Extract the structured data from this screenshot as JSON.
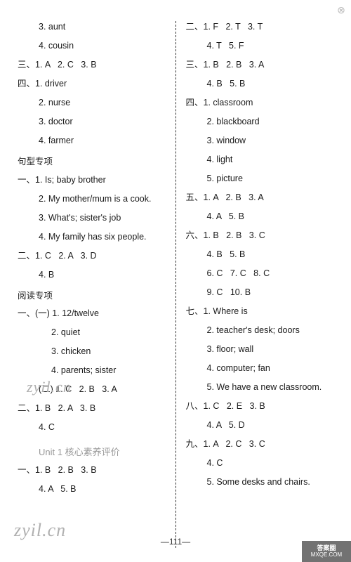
{
  "left": [
    {
      "cls": "line indent1",
      "t": "3. aunt"
    },
    {
      "cls": "line indent1",
      "t": "4. cousin"
    },
    {
      "cls": "line",
      "t": "三、1. A   2. C   3. B"
    },
    {
      "cls": "line",
      "t": "四、1. driver"
    },
    {
      "cls": "line indent1",
      "t": "2. nurse"
    },
    {
      "cls": "line indent1",
      "t": "3. doctor"
    },
    {
      "cls": "line indent1",
      "t": "4. farmer"
    },
    {
      "cls": "section-header",
      "t": "句型专项"
    },
    {
      "cls": "line",
      "t": "一、1. Is; baby brother"
    },
    {
      "cls": "line indent1",
      "t": "2. My mother/mum is a cook."
    },
    {
      "cls": "line indent1",
      "t": "3. What's; sister's job"
    },
    {
      "cls": "line indent1",
      "t": "4. My family has six people."
    },
    {
      "cls": "line",
      "t": "二、1. C   2. A   3. D"
    },
    {
      "cls": "line indent1",
      "t": "4. B"
    },
    {
      "cls": "section-header",
      "t": "阅读专项"
    },
    {
      "cls": "line",
      "t": "一、(一) 1. 12/twelve"
    },
    {
      "cls": "line indent2",
      "t": "2. quiet"
    },
    {
      "cls": "line indent2",
      "t": "3. chicken"
    },
    {
      "cls": "line indent2",
      "t": "4. parents; sister"
    },
    {
      "cls": "line indent1",
      "t": "(二) 1. C   2. B   3. A"
    },
    {
      "cls": "line",
      "t": "二、1. B   2. A   3. B"
    },
    {
      "cls": "line indent1",
      "t": "4. C"
    },
    {
      "cls": "unit-title",
      "t": "Unit 1 核心素养评价"
    },
    {
      "cls": "line",
      "t": "一、1. B   2. B   3. B"
    },
    {
      "cls": "line indent1",
      "t": "4. A   5. B"
    }
  ],
  "right": [
    {
      "cls": "line",
      "t": "二、1. F   2. T   3. T"
    },
    {
      "cls": "line indent1",
      "t": "4. T   5. F"
    },
    {
      "cls": "line",
      "t": "三、1. B   2. B   3. A"
    },
    {
      "cls": "line indent1",
      "t": "4. B   5. B"
    },
    {
      "cls": "line",
      "t": "四、1. classroom"
    },
    {
      "cls": "line indent1",
      "t": "2. blackboard"
    },
    {
      "cls": "line indent1",
      "t": "3. window"
    },
    {
      "cls": "line indent1",
      "t": "4. light"
    },
    {
      "cls": "line indent1",
      "t": "5. picture"
    },
    {
      "cls": "line",
      "t": "五、1. A   2. B   3. A"
    },
    {
      "cls": "line indent1",
      "t": "4. A   5. B"
    },
    {
      "cls": "line",
      "t": "六、1. B   2. B   3. C"
    },
    {
      "cls": "line indent1",
      "t": "4. B   5. B"
    },
    {
      "cls": "line indent1",
      "t": "6. C   7. C   8. C"
    },
    {
      "cls": "line indent1",
      "t": "9. C   10. B"
    },
    {
      "cls": "line",
      "t": "七、1. Where is"
    },
    {
      "cls": "line indent1",
      "t": "2. teacher's desk; doors"
    },
    {
      "cls": "line indent1",
      "t": "3. floor; wall"
    },
    {
      "cls": "line indent1",
      "t": "4. computer; fan"
    },
    {
      "cls": "line indent1",
      "t": "5. We have a new classroom."
    },
    {
      "cls": "line",
      "t": "八、1. C   2. E   3. B"
    },
    {
      "cls": "line indent1",
      "t": "4. A   5. D"
    },
    {
      "cls": "line",
      "t": "九、1. A   2. C   3. C"
    },
    {
      "cls": "line indent1",
      "t": "4. C"
    },
    {
      "cls": "line indent1",
      "t": "5. Some desks and chairs."
    }
  ],
  "pageNumber": "—111—",
  "watermark": "zyil.cn",
  "badge": {
    "top": "答案圈",
    "bottom": "MXQE.COM"
  },
  "closeGlyph": "⊗"
}
